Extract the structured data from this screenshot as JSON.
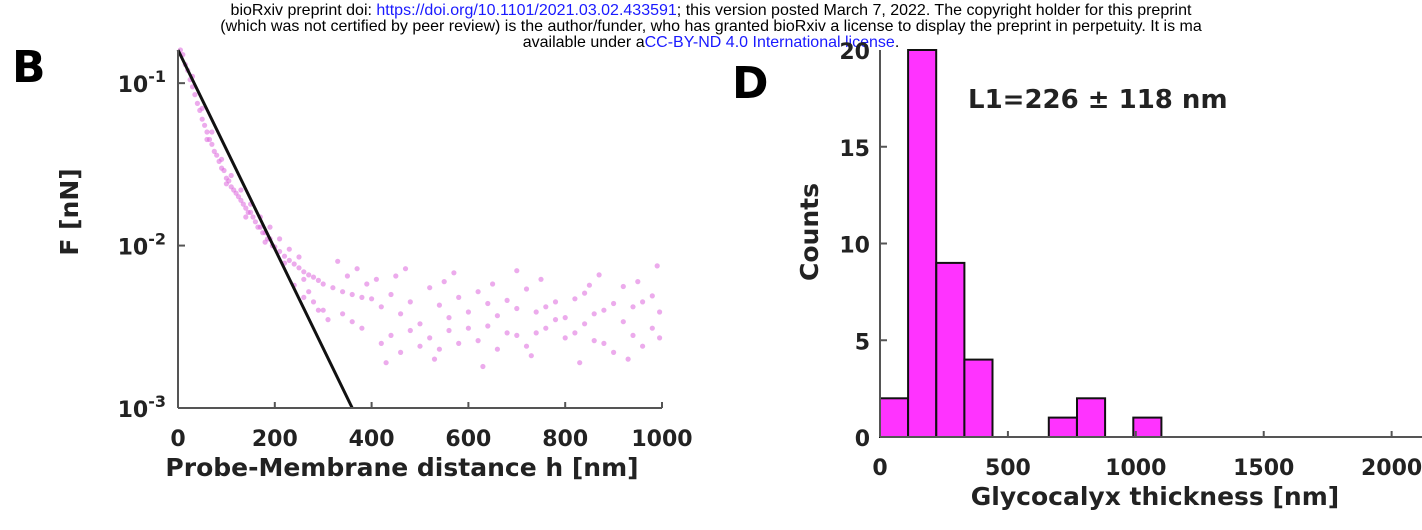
{
  "header": {
    "line1_prefix": "bioRxiv preprint doi: ",
    "doi_link": "https://doi.org/10.1101/2021.03.02.433591",
    "line1_suffix": "; this version posted March 7, 2022. The copyright holder for this preprint",
    "line2": "(which was not certified by peer review) is the author/funder, who has granted bioRxiv a license to display the preprint in perpetuity. It is ma",
    "line3_prefix": "available under a",
    "license_link": "CC-BY-ND 4.0 International license",
    "line3_suffix": "."
  },
  "colors": {
    "accent": "#ff33ff",
    "scatter": "#dd66dd",
    "fit_line": "#111111",
    "link": "#1a1aff"
  },
  "chart_data": [
    {
      "panel": "B",
      "type": "scatter",
      "xlabel": "Probe-Membrane distance h [nm]",
      "ylabel": "F [nN]",
      "yscale": "log",
      "xlim": [
        0,
        1000
      ],
      "ylim": [
        0.001,
        0.16
      ],
      "xticks": [
        "0",
        "200",
        "400",
        "600",
        "800",
        "1000"
      ],
      "yticks": [
        {
          "base": "10",
          "exp": "-1",
          "value": 0.1
        },
        {
          "base": "10",
          "exp": "-2",
          "value": 0.01
        },
        {
          "base": "10",
          "exp": "-3",
          "value": 0.001
        }
      ],
      "fit_line": {
        "x": [
          0,
          360
        ],
        "y": [
          0.16,
          0.001
        ]
      },
      "series": [
        {
          "points": [
            [
              5,
              0.16
            ],
            [
              10,
              0.15
            ],
            [
              15,
              0.13
            ],
            [
              20,
              0.12
            ],
            [
              25,
              0.105
            ],
            [
              30,
              0.095
            ],
            [
              35,
              0.085
            ],
            [
              40,
              0.075
            ],
            [
              45,
              0.068
            ],
            [
              50,
              0.06
            ],
            [
              55,
              0.055
            ],
            [
              60,
              0.05
            ],
            [
              65,
              0.045
            ],
            [
              70,
              0.042
            ],
            [
              75,
              0.038
            ],
            [
              80,
              0.036
            ],
            [
              85,
              0.033
            ],
            [
              90,
              0.03
            ],
            [
              95,
              0.029
            ],
            [
              100,
              0.026
            ],
            [
              105,
              0.025
            ],
            [
              110,
              0.023
            ],
            [
              115,
              0.022
            ],
            [
              120,
              0.021
            ],
            [
              125,
              0.02
            ],
            [
              130,
              0.019
            ],
            [
              135,
              0.018
            ],
            [
              140,
              0.017
            ],
            [
              145,
              0.016
            ],
            [
              150,
              0.016
            ],
            [
              155,
              0.015
            ],
            [
              160,
              0.014
            ],
            [
              165,
              0.013
            ],
            [
              170,
              0.013
            ],
            [
              175,
              0.012
            ],
            [
              180,
              0.012
            ],
            [
              185,
              0.011
            ],
            [
              190,
              0.011
            ],
            [
              195,
              0.01
            ],
            [
              200,
              0.0098
            ],
            [
              210,
              0.0092
            ],
            [
              220,
              0.0086
            ],
            [
              230,
              0.0081
            ],
            [
              240,
              0.0077
            ],
            [
              250,
              0.0073
            ],
            [
              260,
              0.0069
            ],
            [
              270,
              0.0066
            ],
            [
              280,
              0.0064
            ],
            [
              290,
              0.0061
            ],
            [
              300,
              0.0058
            ],
            [
              30,
              0.11
            ],
            [
              50,
              0.07
            ],
            [
              70,
              0.05
            ],
            [
              90,
              0.034
            ],
            [
              110,
              0.027
            ],
            [
              130,
              0.022
            ],
            [
              150,
              0.018
            ],
            [
              170,
              0.015
            ],
            [
              190,
              0.013
            ],
            [
              210,
              0.011
            ],
            [
              230,
              0.0095
            ],
            [
              250,
              0.0085
            ],
            [
              60,
              0.045
            ],
            [
              100,
              0.024
            ],
            [
              140,
              0.015
            ],
            [
              180,
              0.0105
            ],
            [
              220,
              0.0078
            ],
            [
              260,
              0.0062
            ],
            [
              320,
              0.0055
            ],
            [
              340,
              0.0052
            ],
            [
              360,
              0.005
            ],
            [
              380,
              0.0048
            ],
            [
              400,
              0.0047
            ],
            [
              330,
              0.008
            ],
            [
              350,
              0.0065
            ],
            [
              370,
              0.0072
            ],
            [
              390,
              0.0058
            ],
            [
              410,
              0.0062
            ],
            [
              300,
              0.004
            ],
            [
              310,
              0.0035
            ],
            [
              340,
              0.0038
            ],
            [
              360,
              0.0034
            ],
            [
              380,
              0.0031
            ],
            [
              420,
              0.0042
            ],
            [
              440,
              0.005
            ],
            [
              460,
              0.0038
            ],
            [
              480,
              0.0045
            ],
            [
              500,
              0.0033
            ],
            [
              420,
              0.0025
            ],
            [
              440,
              0.0028
            ],
            [
              460,
              0.0022
            ],
            [
              480,
              0.003
            ],
            [
              500,
              0.0024
            ],
            [
              520,
              0.0055
            ],
            [
              540,
              0.0043
            ],
            [
              560,
              0.0036
            ],
            [
              580,
              0.0048
            ],
            [
              600,
              0.0031
            ],
            [
              520,
              0.0027
            ],
            [
              540,
              0.0023
            ],
            [
              560,
              0.003
            ],
            [
              580,
              0.0025
            ],
            [
              600,
              0.0039
            ],
            [
              620,
              0.0052
            ],
            [
              640,
              0.0044
            ],
            [
              660,
              0.0037
            ],
            [
              680,
              0.0029
            ],
            [
              700,
              0.0041
            ],
            [
              620,
              0.0026
            ],
            [
              640,
              0.0032
            ],
            [
              660,
              0.0023
            ],
            [
              680,
              0.0046
            ],
            [
              700,
              0.0028
            ],
            [
              720,
              0.0054
            ],
            [
              740,
              0.0039
            ],
            [
              760,
              0.0031
            ],
            [
              780,
              0.0045
            ],
            [
              800,
              0.0027
            ],
            [
              720,
              0.0024
            ],
            [
              740,
              0.0029
            ],
            [
              760,
              0.0042
            ],
            [
              780,
              0.0035
            ],
            [
              800,
              0.0036
            ],
            [
              820,
              0.0047
            ],
            [
              840,
              0.0033
            ],
            [
              860,
              0.0026
            ],
            [
              880,
              0.004
            ],
            [
              900,
              0.0022
            ],
            [
              820,
              0.0029
            ],
            [
              840,
              0.0051
            ],
            [
              860,
              0.0038
            ],
            [
              880,
              0.0025
            ],
            [
              900,
              0.0044
            ],
            [
              920,
              0.0034
            ],
            [
              940,
              0.0028
            ],
            [
              960,
              0.0045
            ],
            [
              980,
              0.0031
            ],
            [
              995,
              0.0039
            ],
            [
              920,
              0.0056
            ],
            [
              940,
              0.0042
            ],
            [
              960,
              0.0024
            ],
            [
              980,
              0.0049
            ],
            [
              995,
              0.0027
            ],
            [
              450,
              0.0065
            ],
            [
              550,
              0.006
            ],
            [
              650,
              0.0058
            ],
            [
              750,
              0.0062
            ],
            [
              850,
              0.0057
            ],
            [
              950,
              0.006
            ],
            [
              430,
              0.0019
            ],
            [
              530,
              0.002
            ],
            [
              630,
              0.0018
            ],
            [
              730,
              0.0021
            ],
            [
              830,
              0.0019
            ],
            [
              930,
              0.002
            ],
            [
              470,
              0.0072
            ],
            [
              570,
              0.0068
            ],
            [
              700,
              0.007
            ],
            [
              870,
              0.0066
            ],
            [
              990,
              0.0075
            ],
            [
              260,
              0.0048
            ],
            [
              280,
              0.0045
            ],
            [
              240,
              0.0057
            ],
            [
              270,
              0.0052
            ],
            [
              290,
              0.004
            ]
          ]
        }
      ]
    },
    {
      "panel": "D",
      "type": "bar",
      "subtype": "histogram",
      "annotation": "L1=226 ± 118 nm",
      "xlabel": "Glycocalyx thickness [nm]",
      "ylabel": "Counts",
      "xlim": [
        0,
        2150
      ],
      "ylim": [
        0,
        20
      ],
      "xticks": [
        "0",
        "500",
        "1000",
        "1500",
        "2000"
      ],
      "yticks": [
        "0",
        "5",
        "10",
        "15"
      ],
      "visible_partial_ytick": "20",
      "bin_width": 110,
      "bins": [
        {
          "start": 0,
          "count": 2
        },
        {
          "start": 110,
          "count": 20
        },
        {
          "start": 220,
          "count": 9
        },
        {
          "start": 330,
          "count": 4
        },
        {
          "start": 440,
          "count": 0
        },
        {
          "start": 550,
          "count": 0
        },
        {
          "start": 660,
          "count": 1
        },
        {
          "start": 770,
          "count": 2
        },
        {
          "start": 880,
          "count": 0
        },
        {
          "start": 990,
          "count": 1
        }
      ]
    }
  ]
}
